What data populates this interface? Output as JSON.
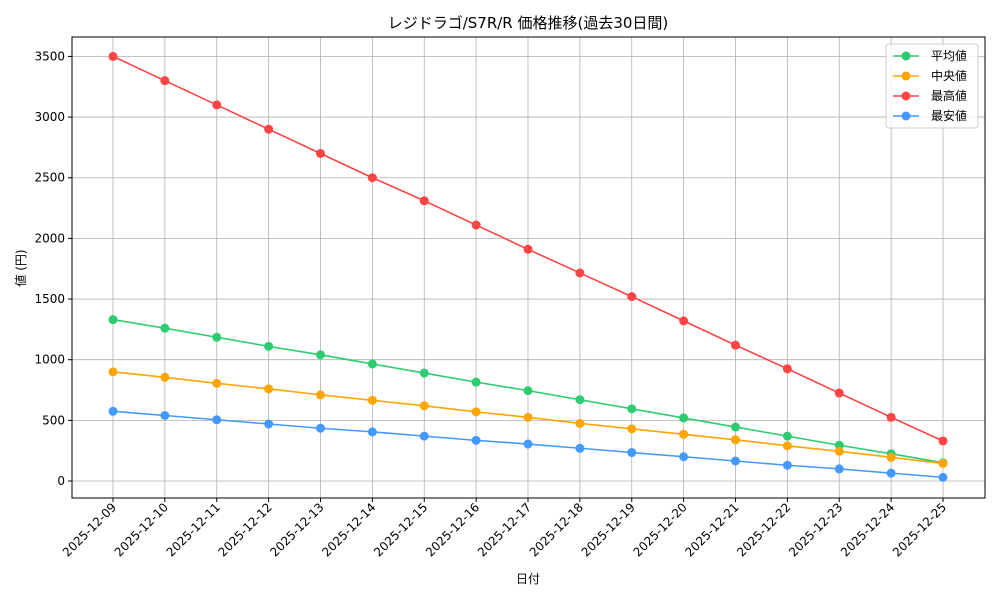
{
  "chart_data": {
    "type": "line",
    "title": "レジドラゴ/S7R/R 価格推移(過去30日間)",
    "xlabel": "日付",
    "ylabel": "値 (円)",
    "ylim": [
      -140,
      3660
    ],
    "yticks": [
      0,
      500,
      1000,
      1500,
      2000,
      2500,
      3000,
      3500
    ],
    "grid": true,
    "legend_position": "top-right",
    "categories": [
      "2025-12-09",
      "2025-12-10",
      "2025-12-11",
      "2025-12-12",
      "2025-12-13",
      "2025-12-14",
      "2025-12-15",
      "2025-12-16",
      "2025-12-17",
      "2025-12-18",
      "2025-12-19",
      "2025-12-20",
      "2025-12-21",
      "2025-12-22",
      "2025-12-23",
      "2025-12-24",
      "2025-12-25"
    ],
    "series": [
      {
        "name": "平均値",
        "color": "#2ecc71",
        "values": [
          1330,
          1260,
          1185,
          1110,
          1040,
          965,
          890,
          815,
          745,
          670,
          595,
          520,
          445,
          370,
          295,
          225,
          150
        ]
      },
      {
        "name": "中央値",
        "color": "#ffa500",
        "values": [
          900,
          855,
          805,
          760,
          710,
          665,
          620,
          570,
          525,
          475,
          430,
          385,
          340,
          290,
          245,
          195,
          145
        ]
      },
      {
        "name": "最高値",
        "color": "#ff4444",
        "values": [
          3500,
          3300,
          3100,
          2900,
          2700,
          2500,
          2310,
          2110,
          1910,
          1715,
          1520,
          1320,
          1120,
          925,
          725,
          525,
          330
        ]
      },
      {
        "name": "最安値",
        "color": "#4499ff",
        "values": [
          575,
          540,
          505,
          470,
          435,
          405,
          370,
          335,
          305,
          270,
          235,
          200,
          165,
          130,
          100,
          65,
          30
        ]
      }
    ]
  }
}
